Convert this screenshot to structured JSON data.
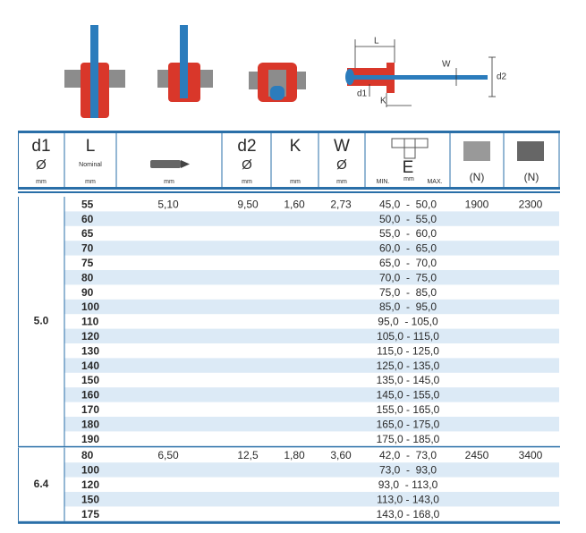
{
  "diagram": {
    "labels": {
      "L": "L",
      "W": "W",
      "d2": "d2",
      "d1": "d1",
      "K": "K"
    }
  },
  "table": {
    "header": {
      "d1": {
        "title": "d1",
        "symbol": "Ø",
        "unit": "mm"
      },
      "L": {
        "title": "L",
        "note": "Nominal",
        "unit": "mm"
      },
      "drill": {
        "unit": "mm"
      },
      "d2": {
        "title": "d2",
        "symbol": "Ø",
        "unit": "mm"
      },
      "K": {
        "title": "K",
        "unit": "mm"
      },
      "W": {
        "title": "W",
        "symbol": "Ø",
        "unit": "mm"
      },
      "E": {
        "title": "E",
        "min": "MIN.",
        "unit": "mm",
        "max": "MAX."
      },
      "shear": {
        "unit": "(N)"
      },
      "tensile": {
        "unit": "(N)"
      }
    },
    "groups": [
      {
        "d1": "5.0",
        "rows": [
          {
            "L": "55",
            "drill": "5,10",
            "d2": "9,50",
            "K": "1,60",
            "W": "2,73",
            "E": "45,0  -  50,0",
            "shear": "1900",
            "tensile": "2300"
          },
          {
            "L": "60",
            "E": "50,0  -  55,0"
          },
          {
            "L": "65",
            "E": "55,0  -  60,0"
          },
          {
            "L": "70",
            "E": "60,0  -  65,0"
          },
          {
            "L": "75",
            "E": "65,0  -  70,0"
          },
          {
            "L": "80",
            "E": "70,0  -  75,0"
          },
          {
            "L": "90",
            "E": "75,0  -  85,0"
          },
          {
            "L": "100",
            "E": "85,0  -  95,0"
          },
          {
            "L": "110",
            "E": "95,0  - 105,0"
          },
          {
            "L": "120",
            "E": "105,0 - 115,0"
          },
          {
            "L": "130",
            "E": "115,0 - 125,0"
          },
          {
            "L": "140",
            "E": "125,0 - 135,0"
          },
          {
            "L": "150",
            "E": "135,0 - 145,0"
          },
          {
            "L": "160",
            "E": "145,0 - 155,0"
          },
          {
            "L": "170",
            "E": "155,0 - 165,0"
          },
          {
            "L": "180",
            "E": "165,0 - 175,0"
          },
          {
            "L": "190",
            "E": "175,0 - 185,0"
          }
        ]
      },
      {
        "d1": "6.4",
        "rows": [
          {
            "L": "80",
            "drill": "6,50",
            "d2": "12,5",
            "K": "1,80",
            "W": "3,60",
            "E": "42,0  -  73,0",
            "shear": "2450",
            "tensile": "3400"
          },
          {
            "L": "100",
            "E": "73,0  -  93,0"
          },
          {
            "L": "120",
            "E": "93,0  - 113,0"
          },
          {
            "L": "150",
            "E": "113,0 - 143,0"
          },
          {
            "L": "175",
            "E": "143,0 - 168,0"
          }
        ]
      }
    ]
  }
}
